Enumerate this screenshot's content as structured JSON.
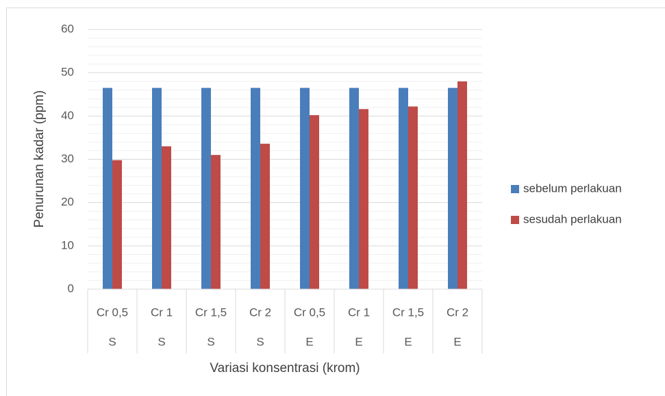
{
  "chart_data": {
    "type": "bar",
    "title": "",
    "xlabel": "Variasi konsentrasi (krom)",
    "ylabel": "Penurunan kadar (ppm)",
    "ylim": [
      0,
      60
    ],
    "yticks": [
      0,
      10,
      20,
      30,
      40,
      50,
      60
    ],
    "categories": [
      "Cr 0,5",
      "Cr 1",
      "Cr 1,5",
      "Cr 2",
      "Cr 0,5",
      "Cr 1",
      "Cr 1,5",
      "Cr 2"
    ],
    "groups": [
      "S",
      "S",
      "S",
      "S",
      "E",
      "E",
      "E",
      "E"
    ],
    "series": [
      {
        "name": "sebelum perlakuan",
        "color": "#4a7ebb",
        "values": [
          46.5,
          46.5,
          46.5,
          46.5,
          46.5,
          46.5,
          46.5,
          46.5
        ]
      },
      {
        "name": "sesudah perlakuan",
        "color": "#be4b48",
        "values": [
          29.8,
          33.0,
          31.0,
          33.6,
          40.2,
          41.6,
          42.2,
          48.0
        ]
      }
    ],
    "grid": true,
    "legend_position": "right"
  }
}
